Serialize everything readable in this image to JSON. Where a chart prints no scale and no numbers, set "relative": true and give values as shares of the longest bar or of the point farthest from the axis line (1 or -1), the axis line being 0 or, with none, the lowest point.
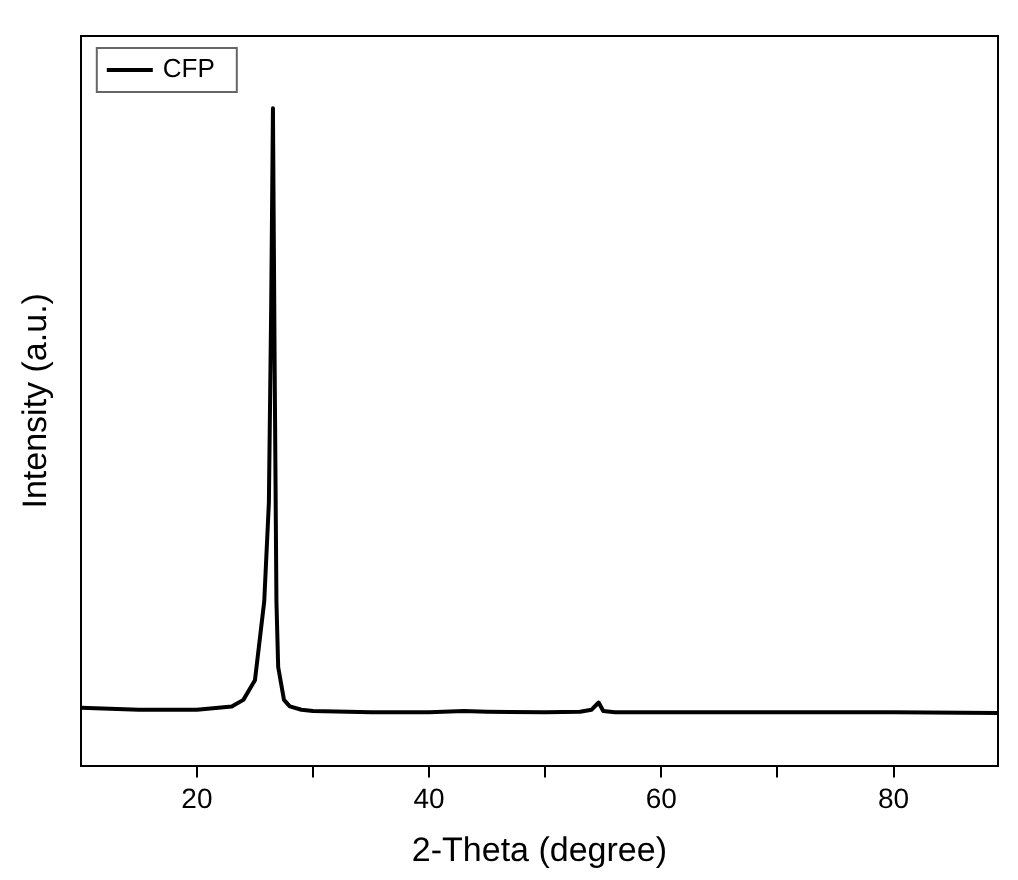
{
  "chart_data": {
    "type": "line",
    "xlabel": "2-Theta (degree)",
    "ylabel": "Intensity (a.u.)",
    "relative": true,
    "xlim": [
      10,
      89
    ],
    "xticks": [
      20,
      {
        "value": 30,
        "label": null
      },
      40,
      {
        "value": 50,
        "label": null
      },
      60,
      {
        "value": 70,
        "label": null
      },
      80
    ],
    "tick_labels": "x",
    "legend": "top left",
    "grid": false,
    "marker": "none",
    "line_style": "solid",
    "series": [
      {
        "name": "CFP",
        "color": "#000000",
        "x": [
          10,
          15,
          20,
          23,
          24,
          25,
          25.8,
          26.2,
          26.4,
          26.55,
          26.7,
          26.85,
          27,
          27.5,
          28,
          29,
          30,
          35,
          40,
          43,
          45,
          50,
          53,
          54,
          54.6,
          55,
          56,
          60,
          70,
          80,
          89
        ],
        "values": [
          0.088,
          0.085,
          0.085,
          0.09,
          0.1,
          0.13,
          0.25,
          0.4,
          0.7,
          1.0,
          0.6,
          0.25,
          0.15,
          0.1,
          0.09,
          0.085,
          0.083,
          0.081,
          0.081,
          0.083,
          0.082,
          0.081,
          0.082,
          0.085,
          0.096,
          0.083,
          0.081,
          0.081,
          0.081,
          0.081,
          0.08
        ]
      }
    ]
  }
}
